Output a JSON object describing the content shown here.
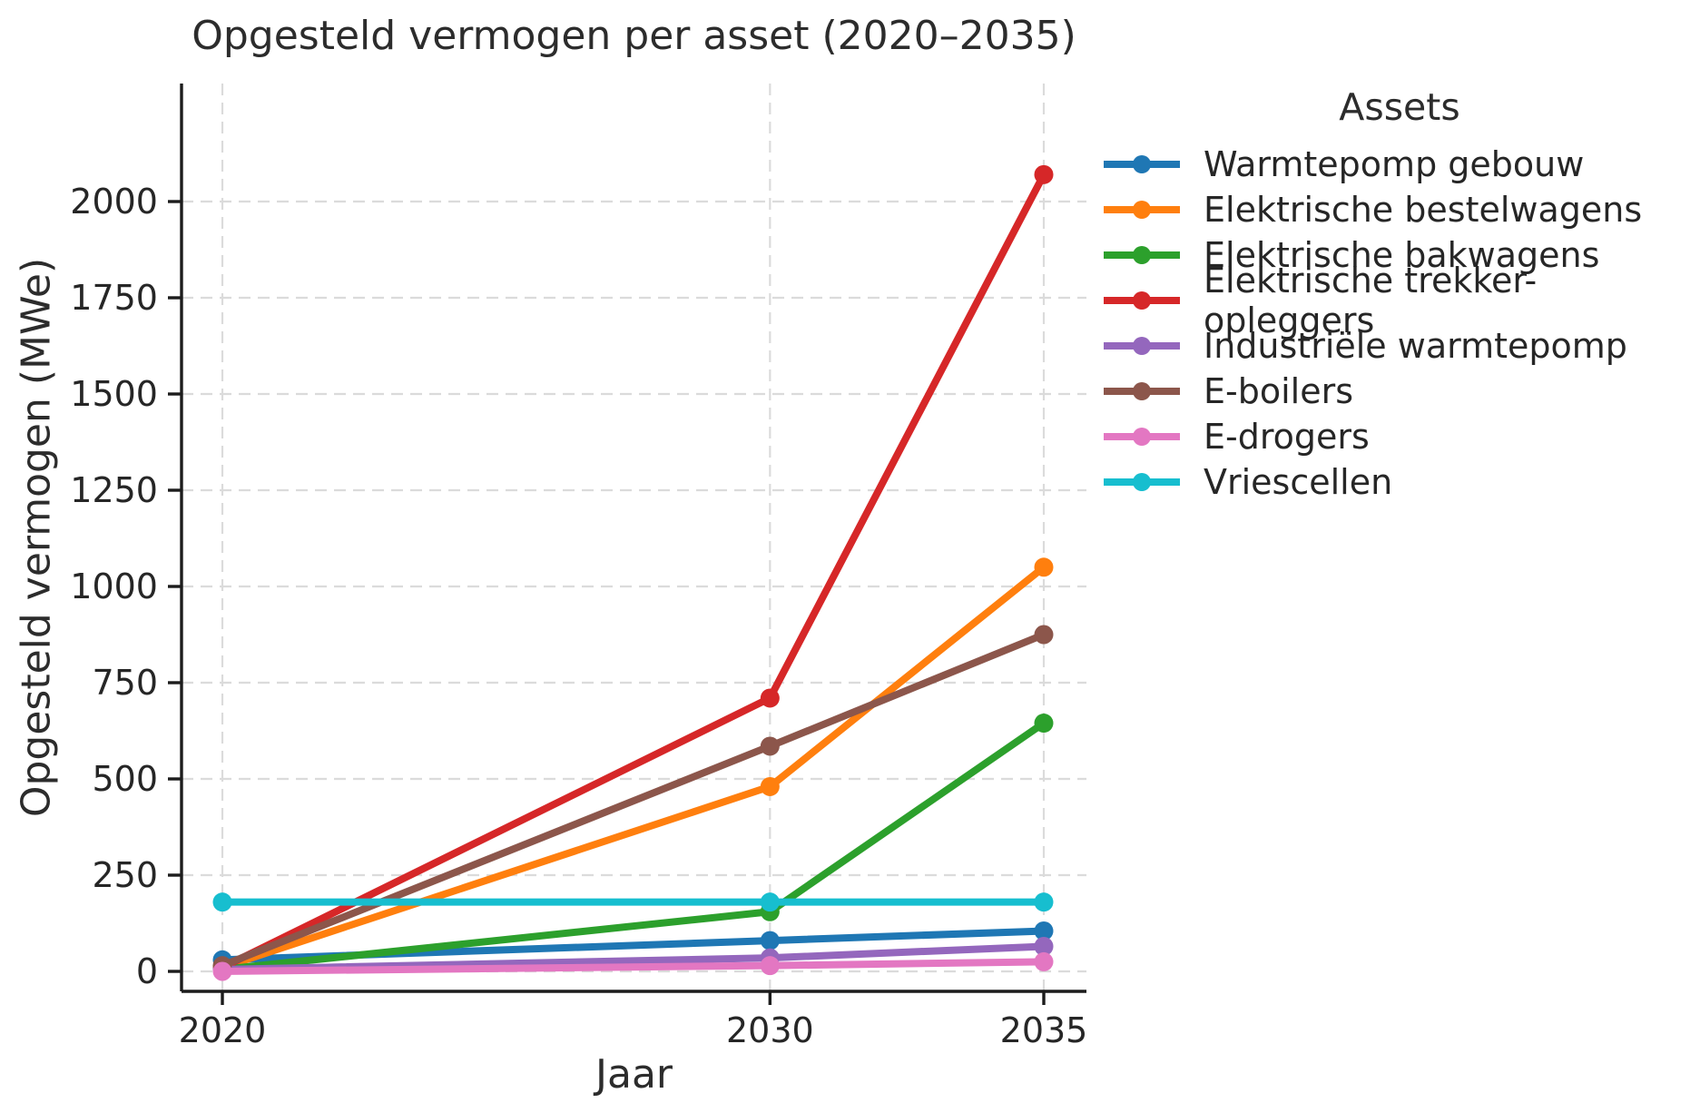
{
  "title": "Opgesteld vermogen per asset (2020–2035)",
  "x_axis_label": "Jaar",
  "y_axis_label": "Opgesteld vermogen (MWe)",
  "legend": {
    "title": "Assets"
  },
  "chart_data": {
    "type": "line",
    "x": [
      2020,
      2030,
      2035
    ],
    "x_tick_labels": [
      "2020",
      "2030",
      "2035"
    ],
    "y_ticks": [
      0,
      250,
      500,
      750,
      1000,
      1250,
      1500,
      1750,
      2000
    ],
    "xlim": [
      2019.25,
      2035.78
    ],
    "ylim": [
      -52,
      2307
    ],
    "grid": "dashed",
    "grid_color": "#dbdbdb",
    "axis_color": "#1c1c1c",
    "legend_position": "outside-upper-right",
    "series": [
      {
        "name": "Warmtepomp gebouw",
        "color": "#1f77b4",
        "values": [
          30,
          80,
          105
        ]
      },
      {
        "name": "Elektrische bestelwagens",
        "color": "#ff7f0e",
        "values": [
          10,
          480,
          1050
        ]
      },
      {
        "name": "Elektrische bakwagens",
        "color": "#2ca02c",
        "values": [
          5,
          155,
          645
        ]
      },
      {
        "name": "Elektrische trekker-opleggers",
        "color": "#d62728",
        "values": [
          10,
          710,
          2070
        ]
      },
      {
        "name": "Industriële warmtepomp",
        "color": "#9467bd",
        "values": [
          5,
          35,
          65
        ]
      },
      {
        "name": "E-boilers",
        "color": "#8c564b",
        "values": [
          15,
          585,
          875
        ]
      },
      {
        "name": "E-drogers",
        "color": "#e377c2",
        "values": [
          0,
          15,
          25
        ]
      },
      {
        "name": "Vriescellen",
        "color": "#17becf",
        "values": [
          180,
          180,
          180
        ]
      }
    ]
  }
}
